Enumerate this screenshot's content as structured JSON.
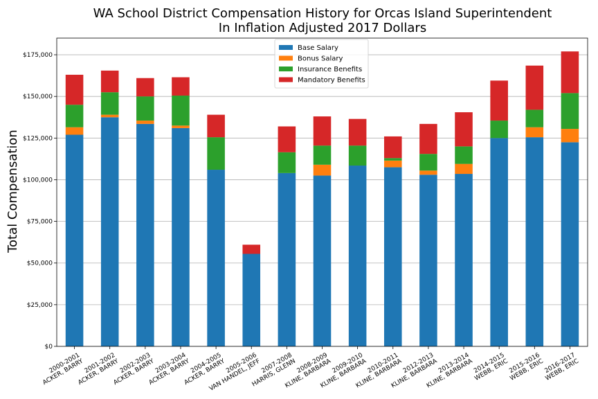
{
  "chart_data": {
    "type": "bar",
    "stacked": true,
    "title_line1": "WA School District Compensation History for Orcas Island Superintendent",
    "title_line2": "In Inflation Adjusted 2017 Dollars",
    "ylabel": "Total Compensation",
    "ylim": [
      0,
      185000
    ],
    "yticks": [
      0,
      25000,
      50000,
      75000,
      100000,
      125000,
      150000,
      175000
    ],
    "ytick_labels": [
      "$0",
      "$25,000",
      "$50,000",
      "$75,000",
      "$100,000",
      "$125,000",
      "$150,000",
      "$175,000"
    ],
    "grid": "horizontal",
    "legend_position": "top-center",
    "categories": [
      {
        "year": "2000-2001",
        "name": "ACKER, BARRY"
      },
      {
        "year": "2001-2002",
        "name": "ACKER, BARRY"
      },
      {
        "year": "2002-2003",
        "name": "ACKER, BARRY"
      },
      {
        "year": "2003-2004",
        "name": "ACKER, BARRY"
      },
      {
        "year": "2004-2005",
        "name": "ACKER, BARRY"
      },
      {
        "year": "2005-2006",
        "name": "VAN HANDEL, JEFF"
      },
      {
        "year": "2007-2008",
        "name": "HARRIS, GLENN"
      },
      {
        "year": "2008-2009",
        "name": "KLINE, BARBARA"
      },
      {
        "year": "2009-2010",
        "name": "KLINE, BARBARA"
      },
      {
        "year": "2010-2011",
        "name": "KLINE, BARBARA"
      },
      {
        "year": "2012-2013",
        "name": "KLINE, BARBARA"
      },
      {
        "year": "2013-2014",
        "name": "KLINE, BARBARA"
      },
      {
        "year": "2014-2015",
        "name": "WEBB, ERIC"
      },
      {
        "year": "2015-2016",
        "name": "WEBB, ERIC"
      },
      {
        "year": "2016-2017",
        "name": "WEBB, ERIC"
      }
    ],
    "series": [
      {
        "name": "Base Salary",
        "color": "#1f77b4",
        "values": [
          127000,
          137500,
          133500,
          131000,
          106000,
          55500,
          104000,
          102500,
          108500,
          107500,
          103000,
          103500,
          125000,
          125500,
          122500
        ]
      },
      {
        "name": "Bonus Salary",
        "color": "#ff7f0e",
        "values": [
          4500,
          1500,
          2000,
          1500,
          0,
          0,
          0,
          6500,
          0,
          4000,
          2500,
          6000,
          0,
          6000,
          8000
        ]
      },
      {
        "name": "Insurance Benefits",
        "color": "#2ca02c",
        "values": [
          13500,
          13500,
          14500,
          18000,
          19500,
          0,
          12500,
          11500,
          12000,
          1500,
          10000,
          10500,
          10500,
          10500,
          21500
        ]
      },
      {
        "name": "Mandatory Benefits",
        "color": "#d62728",
        "values": [
          18000,
          13000,
          11000,
          11000,
          13500,
          5500,
          15500,
          17500,
          16000,
          13000,
          18000,
          20500,
          24000,
          26500,
          25000
        ]
      }
    ]
  }
}
